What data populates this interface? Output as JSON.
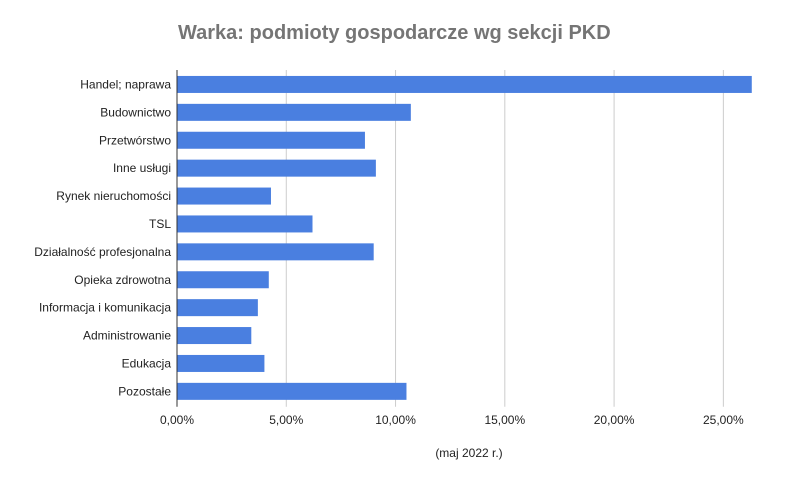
{
  "chart_data": {
    "type": "bar",
    "orientation": "horizontal",
    "title": "Warka: podmioty gospodarcze wg sekcji PKD",
    "xlabel": "(maj 2022 r.)",
    "ylabel": "",
    "categories": [
      "Handel; naprawa",
      "Budownictwo",
      "Przetwórstwo",
      "Inne usługi",
      "Rynek nieruchomości",
      "TSL",
      "Działalność profesjonalna",
      "Opieka zdrowotna",
      "Informacja i komunikacja",
      "Administrowanie",
      "Edukacja",
      "Pozostałe"
    ],
    "values": [
      26.3,
      10.7,
      8.6,
      9.1,
      4.3,
      6.2,
      9.0,
      4.2,
      3.7,
      3.4,
      4.0,
      10.5
    ],
    "xlim": [
      0,
      27.5
    ],
    "xticks": [
      0,
      5,
      10,
      15,
      20,
      25
    ],
    "xtick_labels": [
      "0,00%",
      "5,00%",
      "10,00%",
      "15,00%",
      "20,00%",
      "25,00%"
    ],
    "grid": true,
    "legend": "none",
    "colors": {
      "bar": "#4a7fe0",
      "grid": "#cccccc",
      "axis": "#333333",
      "title": "#757575"
    }
  }
}
